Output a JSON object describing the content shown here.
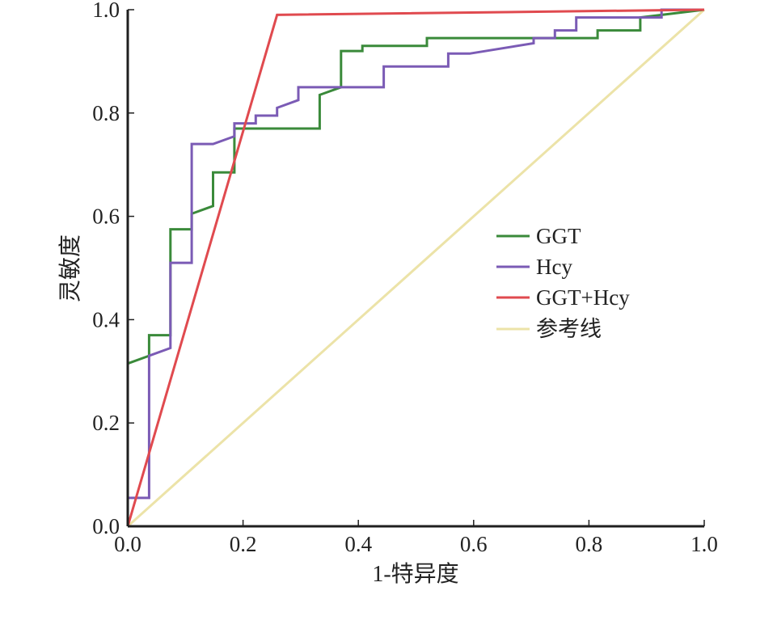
{
  "chart_data": {
    "type": "line",
    "title": "",
    "xlabel": "1-特异度",
    "ylabel": "灵敏度",
    "xlim": [
      0,
      1
    ],
    "ylim": [
      0,
      1
    ],
    "x_ticks": [
      "0.0",
      "0.2",
      "0.4",
      "0.6",
      "0.8",
      "1.0"
    ],
    "y_ticks": [
      "0.0",
      "0.2",
      "0.4",
      "0.6",
      "0.8",
      "1.0"
    ],
    "grid": false,
    "legend_position": "right",
    "series": [
      {
        "name": "GGT",
        "color": "#3a8a3a",
        "points": [
          [
            0.0,
            0.315
          ],
          [
            0.037,
            0.33
          ],
          [
            0.037,
            0.37
          ],
          [
            0.074,
            0.37
          ],
          [
            0.074,
            0.575
          ],
          [
            0.111,
            0.575
          ],
          [
            0.111,
            0.605
          ],
          [
            0.148,
            0.62
          ],
          [
            0.148,
            0.685
          ],
          [
            0.185,
            0.685
          ],
          [
            0.185,
            0.77
          ],
          [
            0.333,
            0.77
          ],
          [
            0.333,
            0.835
          ],
          [
            0.37,
            0.85
          ],
          [
            0.37,
            0.92
          ],
          [
            0.407,
            0.92
          ],
          [
            0.407,
            0.93
          ],
          [
            0.519,
            0.93
          ],
          [
            0.519,
            0.945
          ],
          [
            0.815,
            0.945
          ],
          [
            0.815,
            0.96
          ],
          [
            0.889,
            0.96
          ],
          [
            0.889,
            0.985
          ],
          [
            1.0,
            1.0
          ]
        ]
      },
      {
        "name": "Hcy",
        "color": "#7b5bb5",
        "points": [
          [
            0.0,
            0.055
          ],
          [
            0.037,
            0.055
          ],
          [
            0.037,
            0.33
          ],
          [
            0.074,
            0.345
          ],
          [
            0.074,
            0.51
          ],
          [
            0.111,
            0.51
          ],
          [
            0.111,
            0.74
          ],
          [
            0.148,
            0.74
          ],
          [
            0.185,
            0.755
          ],
          [
            0.185,
            0.78
          ],
          [
            0.222,
            0.78
          ],
          [
            0.222,
            0.795
          ],
          [
            0.259,
            0.795
          ],
          [
            0.259,
            0.81
          ],
          [
            0.296,
            0.825
          ],
          [
            0.296,
            0.85
          ],
          [
            0.444,
            0.85
          ],
          [
            0.444,
            0.89
          ],
          [
            0.556,
            0.89
          ],
          [
            0.556,
            0.915
          ],
          [
            0.593,
            0.915
          ],
          [
            0.704,
            0.935
          ],
          [
            0.704,
            0.945
          ],
          [
            0.741,
            0.945
          ],
          [
            0.741,
            0.96
          ],
          [
            0.778,
            0.96
          ],
          [
            0.778,
            0.985
          ],
          [
            0.926,
            0.985
          ],
          [
            0.926,
            1.0
          ],
          [
            1.0,
            1.0
          ]
        ]
      },
      {
        "name": "GGT+Hcy",
        "color": "#e04a4f",
        "points": [
          [
            0.0,
            0.0
          ],
          [
            0.259,
            0.99
          ],
          [
            1.0,
            1.0
          ]
        ]
      },
      {
        "name": "参考线",
        "color": "#ece3a8",
        "points": [
          [
            0.0,
            0.0
          ],
          [
            1.0,
            1.0
          ]
        ]
      }
    ]
  }
}
